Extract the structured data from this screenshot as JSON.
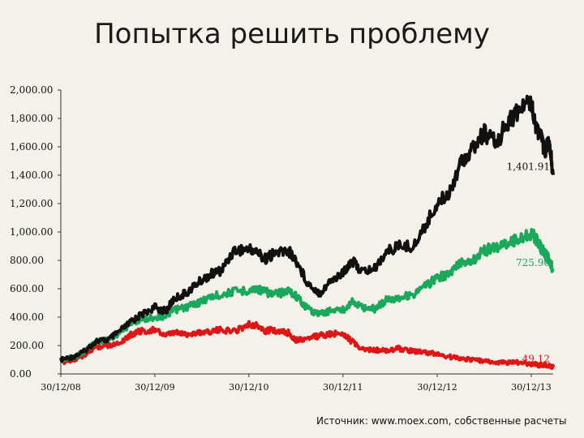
{
  "title": "Попытка решить проблему",
  "source": "Источник: www.moex.com, собственные расчеты",
  "colors": {
    "black_series": "#111111",
    "green_series": "#1aa85a",
    "red_series": "#e01515"
  },
  "chart_data": {
    "type": "line",
    "title": "Попытка решить проблему",
    "xlabel": "",
    "ylabel": "",
    "ylim": [
      0,
      2000
    ],
    "x_range": [
      "2008-12-30",
      "2014-03-25"
    ],
    "x_ticks": [
      {
        "label": "30/12/08",
        "date": "2008-12-30"
      },
      {
        "label": "30/12/09",
        "date": "2009-12-30"
      },
      {
        "label": "30/12/10",
        "date": "2010-12-30"
      },
      {
        "label": "30/12/11",
        "date": "2011-12-30"
      },
      {
        "label": "30/12/12",
        "date": "2012-12-30"
      },
      {
        "label": "30/12/13",
        "date": "2013-12-30"
      }
    ],
    "y_ticks": [
      "0.00",
      "200.00",
      "400.00",
      "600.00",
      "800.00",
      "1,000.00",
      "1,200.00",
      "1,400.00",
      "1,600.00",
      "1,800.00",
      "2,000.00"
    ],
    "grid": false,
    "legend": "none",
    "series": [
      {
        "color": "#111111",
        "end_label": "1,401.91",
        "points": [
          [
            "2008-12-30",
            100
          ],
          [
            "2009-02-15",
            120
          ],
          [
            "2009-04-01",
            160
          ],
          [
            "2009-05-15",
            230
          ],
          [
            "2009-07-01",
            240
          ],
          [
            "2009-08-15",
            300
          ],
          [
            "2009-10-01",
            370
          ],
          [
            "2009-11-01",
            410
          ],
          [
            "2009-12-30",
            470
          ],
          [
            "2010-02-10",
            440
          ],
          [
            "2010-03-15",
            530
          ],
          [
            "2010-05-01",
            570
          ],
          [
            "2010-06-15",
            640
          ],
          [
            "2010-08-01",
            700
          ],
          [
            "2010-09-15",
            730
          ],
          [
            "2010-11-01",
            870
          ],
          [
            "2010-12-30",
            880
          ],
          [
            "2011-02-01",
            860
          ],
          [
            "2011-03-01",
            810
          ],
          [
            "2011-04-01",
            840
          ],
          [
            "2011-05-01",
            860
          ],
          [
            "2011-06-01",
            870
          ],
          [
            "2011-07-01",
            800
          ],
          [
            "2011-08-15",
            640
          ],
          [
            "2011-10-01",
            570
          ],
          [
            "2011-11-15",
            660
          ],
          [
            "2011-12-30",
            710
          ],
          [
            "2012-02-01",
            800
          ],
          [
            "2012-03-15",
            720
          ],
          [
            "2012-05-01",
            740
          ],
          [
            "2012-06-15",
            860
          ],
          [
            "2012-08-01",
            900
          ],
          [
            "2012-10-01",
            900
          ],
          [
            "2012-11-15",
            1050
          ],
          [
            "2012-12-30",
            1200
          ],
          [
            "2013-02-15",
            1280
          ],
          [
            "2013-04-01",
            1500
          ],
          [
            "2013-05-15",
            1580
          ],
          [
            "2013-07-01",
            1700
          ],
          [
            "2013-08-15",
            1620
          ],
          [
            "2013-10-01",
            1780
          ],
          [
            "2013-11-15",
            1860
          ],
          [
            "2013-12-30",
            1930
          ],
          [
            "2014-01-15",
            1760
          ],
          [
            "2014-02-01",
            1680
          ],
          [
            "2014-02-20",
            1580
          ],
          [
            "2014-03-10",
            1630
          ],
          [
            "2014-03-25",
            1402
          ]
        ]
      },
      {
        "color": "#1aa85a",
        "end_label": "725.90",
        "points": [
          [
            "2008-12-30",
            100
          ],
          [
            "2009-02-15",
            115
          ],
          [
            "2009-04-01",
            160
          ],
          [
            "2009-05-15",
            230
          ],
          [
            "2009-07-01",
            240
          ],
          [
            "2009-08-15",
            290
          ],
          [
            "2009-10-01",
            360
          ],
          [
            "2009-11-01",
            380
          ],
          [
            "2009-12-30",
            400
          ],
          [
            "2010-02-10",
            410
          ],
          [
            "2010-03-15",
            450
          ],
          [
            "2010-05-01",
            470
          ],
          [
            "2010-06-15",
            500
          ],
          [
            "2010-08-01",
            540
          ],
          [
            "2010-09-15",
            560
          ],
          [
            "2010-11-01",
            580
          ],
          [
            "2010-12-30",
            590
          ],
          [
            "2011-02-01",
            600
          ],
          [
            "2011-03-01",
            580
          ],
          [
            "2011-04-01",
            560
          ],
          [
            "2011-05-01",
            570
          ],
          [
            "2011-06-01",
            590
          ],
          [
            "2011-07-01",
            550
          ],
          [
            "2011-08-15",
            460
          ],
          [
            "2011-10-01",
            420
          ],
          [
            "2011-11-15",
            450
          ],
          [
            "2011-12-30",
            450
          ],
          [
            "2012-02-01",
            510
          ],
          [
            "2012-03-15",
            470
          ],
          [
            "2012-05-01",
            460
          ],
          [
            "2012-06-15",
            520
          ],
          [
            "2012-08-01",
            540
          ],
          [
            "2012-10-01",
            560
          ],
          [
            "2012-11-15",
            620
          ],
          [
            "2012-12-30",
            680
          ],
          [
            "2013-02-15",
            700
          ],
          [
            "2013-04-01",
            790
          ],
          [
            "2013-05-15",
            800
          ],
          [
            "2013-07-01",
            870
          ],
          [
            "2013-08-15",
            890
          ],
          [
            "2013-10-01",
            930
          ],
          [
            "2013-11-15",
            950
          ],
          [
            "2013-12-30",
            990
          ],
          [
            "2014-01-15",
            960
          ],
          [
            "2014-02-01",
            900
          ],
          [
            "2014-02-20",
            850
          ],
          [
            "2014-03-10",
            800
          ],
          [
            "2014-03-25",
            726
          ]
        ]
      },
      {
        "color": "#e01515",
        "end_label": "49.12",
        "points": [
          [
            "2008-12-30",
            80
          ],
          [
            "2009-02-15",
            100
          ],
          [
            "2009-04-01",
            130
          ],
          [
            "2009-05-15",
            190
          ],
          [
            "2009-07-01",
            200
          ],
          [
            "2009-08-15",
            220
          ],
          [
            "2009-10-01",
            280
          ],
          [
            "2009-11-01",
            300
          ],
          [
            "2009-12-30",
            310
          ],
          [
            "2010-02-10",
            270
          ],
          [
            "2010-03-15",
            290
          ],
          [
            "2010-05-01",
            280
          ],
          [
            "2010-06-15",
            290
          ],
          [
            "2010-08-01",
            300
          ],
          [
            "2010-09-15",
            310
          ],
          [
            "2010-11-01",
            300
          ],
          [
            "2010-12-30",
            350
          ],
          [
            "2011-02-01",
            340
          ],
          [
            "2011-03-01",
            300
          ],
          [
            "2011-04-01",
            310
          ],
          [
            "2011-05-01",
            300
          ],
          [
            "2011-06-01",
            290
          ],
          [
            "2011-07-01",
            240
          ],
          [
            "2011-08-15",
            250
          ],
          [
            "2011-10-01",
            270
          ],
          [
            "2011-11-15",
            280
          ],
          [
            "2011-12-30",
            290
          ],
          [
            "2012-02-01",
            230
          ],
          [
            "2012-03-15",
            170
          ],
          [
            "2012-05-01",
            170
          ],
          [
            "2012-06-15",
            160
          ],
          [
            "2012-08-01",
            180
          ],
          [
            "2012-10-01",
            160
          ],
          [
            "2012-11-15",
            150
          ],
          [
            "2012-12-30",
            140
          ],
          [
            "2013-02-15",
            120
          ],
          [
            "2013-04-01",
            110
          ],
          [
            "2013-05-15",
            100
          ],
          [
            "2013-07-01",
            90
          ],
          [
            "2013-08-15",
            80
          ],
          [
            "2013-10-01",
            80
          ],
          [
            "2013-11-15",
            80
          ],
          [
            "2013-12-30",
            70
          ],
          [
            "2014-01-15",
            70
          ],
          [
            "2014-02-01",
            60
          ],
          [
            "2014-02-20",
            65
          ],
          [
            "2014-03-10",
            55
          ],
          [
            "2014-03-25",
            49
          ]
        ]
      }
    ]
  }
}
